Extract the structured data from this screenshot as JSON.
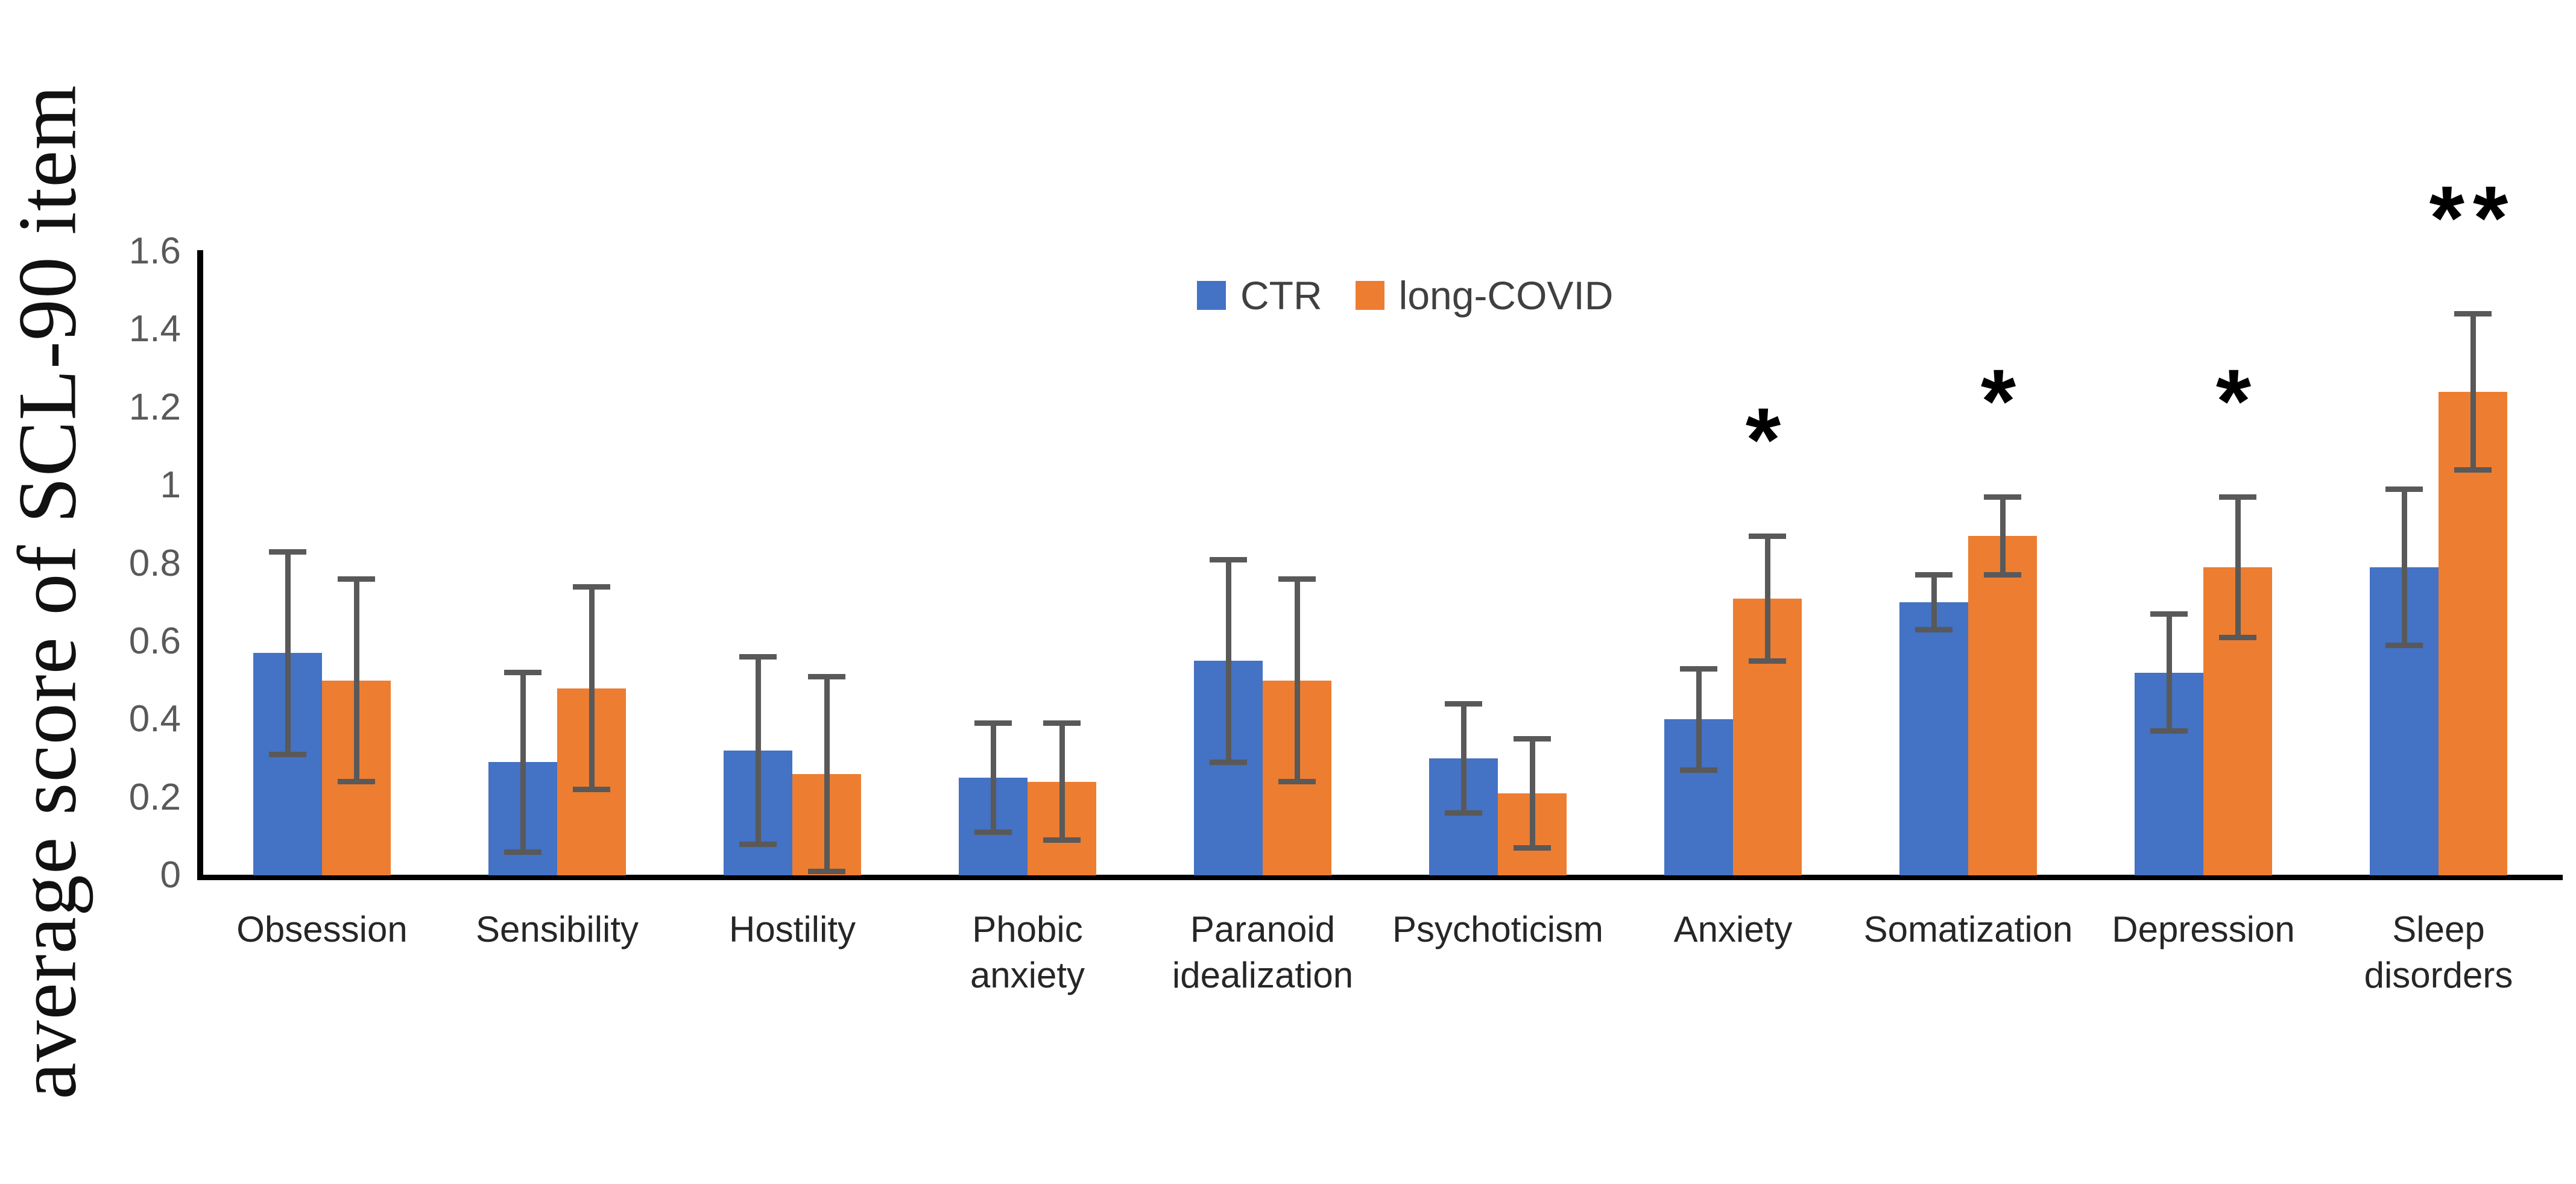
{
  "chart_data": {
    "type": "bar",
    "title": "",
    "ylabel": "average score of SCL-90 item",
    "xlabel": "",
    "ylim": [
      0,
      1.6
    ],
    "yticks": [
      "0",
      "0.2",
      "0.4",
      "0.6",
      "0.8",
      "1",
      "1.2",
      "1.4",
      "1.6"
    ],
    "grid": false,
    "legend_position": "top-center",
    "categories": [
      "Obsession",
      "Sensibility",
      "Hostility",
      "Phobic anxiety",
      "Paranoid idealization",
      "Psychoticism",
      "Anxiety",
      "Somatization",
      "Depression",
      "Sleep disorders"
    ],
    "category_label_lines": [
      [
        "Obsession"
      ],
      [
        "Sensibility"
      ],
      [
        "Hostility"
      ],
      [
        "Phobic",
        "anxiety"
      ],
      [
        "Paranoid",
        "idealization"
      ],
      [
        "Psychoticism"
      ],
      [
        "Anxiety"
      ],
      [
        "Somatization"
      ],
      [
        "Depression"
      ],
      [
        "Sleep",
        "disorders"
      ]
    ],
    "series": [
      {
        "name": "CTR",
        "color": "#4472C4",
        "values": [
          0.57,
          0.29,
          0.32,
          0.25,
          0.55,
          0.3,
          0.4,
          0.7,
          0.52,
          0.79
        ],
        "errors": [
          0.26,
          0.23,
          0.24,
          0.14,
          0.26,
          0.14,
          0.13,
          0.07,
          0.15,
          0.2
        ]
      },
      {
        "name": "long-COVID",
        "color": "#ED7D31",
        "values": [
          0.5,
          0.48,
          0.26,
          0.24,
          0.5,
          0.21,
          0.71,
          0.87,
          0.79,
          1.24
        ],
        "errors": [
          0.26,
          0.26,
          0.25,
          0.15,
          0.26,
          0.14,
          0.16,
          0.1,
          0.18,
          0.2
        ]
      }
    ],
    "significance": [
      "",
      "",
      "",
      "",
      "",
      "",
      "*",
      "*",
      "*",
      "**"
    ],
    "error_bar_color": "#595959",
    "axis_color": "#000000",
    "tick_label_color": "#595959",
    "category_label_color": "#262626",
    "significance_color": "#000000"
  }
}
